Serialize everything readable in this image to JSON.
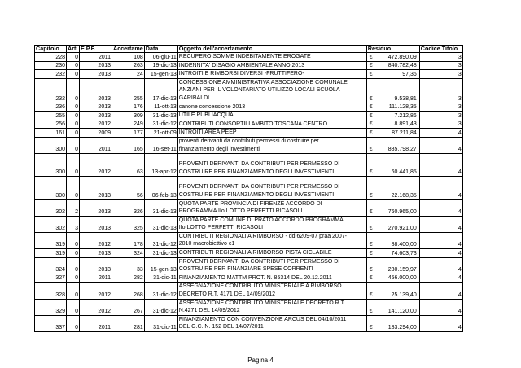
{
  "headers": [
    "Capitolo",
    "Arti",
    "E.P.F.",
    "Accertame",
    "Data",
    "Oggetto dell'accertamento",
    "Residuo",
    "Codice Titolo"
  ],
  "currency_symbol": "€",
  "rows": [
    {
      "capitolo": "228",
      "articolo": "0",
      "epf": "2011",
      "accertamento": "108",
      "data": "06-giu-11",
      "oggetto": "RECUPERO SOMME INDEBITAMENTE EROGATE",
      "residuo": "472.890,09",
      "codice": "3",
      "lines": 1
    },
    {
      "capitolo": "230",
      "articolo": "0",
      "epf": "2013",
      "accertamento": "263",
      "data": "19-dic-13",
      "oggetto": "INDENNITA' DISAGIO AMBIENTALE ANNO 2013",
      "residuo": "840.782,48",
      "codice": "3",
      "lines": 1
    },
    {
      "capitolo": "232",
      "articolo": "0",
      "epf": "2013",
      "accertamento": "24",
      "data": "15-gen-13",
      "oggetto": "INTROITI E RIMBORSI DIVERSI -FRUTTIFERO-",
      "residuo": "97,36",
      "codice": "3",
      "lines": 1
    },
    {
      "capitolo": "232",
      "articolo": "0",
      "epf": "2013",
      "accertamento": "255",
      "data": "17-dic-13",
      "oggetto": "CONCESSIONE AMMINISTRATIVA ASSOCIAZIONE COMUNALE\nANZIANI PER IL VOLONTARIATO UTILIZZO LOCALI SCUOLA\nGARIBALDI",
      "residuo": "9.538,81",
      "codice": "3",
      "lines": 3
    },
    {
      "capitolo": "236",
      "articolo": "0",
      "epf": "2013",
      "accertamento": "176",
      "data": "11-ott-13",
      "oggetto": "canone concessione 2013",
      "residuo": "111.128,35",
      "codice": "3",
      "lines": 1
    },
    {
      "capitolo": "255",
      "articolo": "0",
      "epf": "2013",
      "accertamento": "309",
      "data": "31-dic-13",
      "oggetto": "UTILE PUBLIACQUA",
      "residuo": "7.212,86",
      "codice": "3",
      "lines": 1
    },
    {
      "capitolo": "256",
      "articolo": "0",
      "epf": "2012",
      "accertamento": "249",
      "data": "31-dic-12",
      "oggetto": "CONTRIBUTI CONSORTILI AMBITO TOSCANA CENTRO",
      "residuo": "8.891,43",
      "codice": "3",
      "lines": 1
    },
    {
      "capitolo": "161",
      "articolo": "0",
      "epf": "2009",
      "accertamento": "177",
      "data": "21-ott-09",
      "oggetto": "INTROITI AREA PEEP",
      "residuo": "87.211,84",
      "codice": "4",
      "lines": 1
    },
    {
      "capitolo": "300",
      "articolo": "0",
      "epf": "2011",
      "accertamento": "165",
      "data": "16-set-11",
      "oggetto": "proventi derivanti da contributi permessi di costruire per\nfinanziamento degli investimenti",
      "residuo": "885.798,27",
      "codice": "4",
      "lines": 2
    },
    {
      "capitolo": "300",
      "articolo": "0",
      "epf": "2012",
      "accertamento": "63",
      "data": "13-apr-12",
      "oggetto": "PROVENTI DERIVANTI DA CONTRIBUTI PER PERMESSO DI\nCOSTRUIRE PER FINANZIAMENTO DEGLI INVESTIMENTI",
      "residuo": "60.441,85",
      "codice": "4",
      "lines": 3
    },
    {
      "capitolo": "300",
      "articolo": "0",
      "epf": "2013",
      "accertamento": "56",
      "data": "06-feb-13",
      "oggetto": "PROVENTI DERIVANTI DA CONTRIBUTI PER PERMESSO DI\nCOSTRUIRE PER FINANZIAMENTO DEGLI INVESTIMENTI",
      "residuo": "22.168,35",
      "codice": "4",
      "lines": 3
    },
    {
      "capitolo": "302",
      "articolo": "2",
      "epf": "2013",
      "accertamento": "326",
      "data": "31-dic-13",
      "oggetto": "QUOTA PARTE PROVINCIA DI FIRENZE ACCORDO DI\nPROGRAMMA IIo LOTTO PERFETTI RICASOLI",
      "residuo": "760.965,00",
      "codice": "4",
      "lines": 2
    },
    {
      "capitolo": "302",
      "articolo": "3",
      "epf": "2013",
      "accertamento": "325",
      "data": "31-dic-13",
      "oggetto": "QUOTA PARTE COMUNE DI PRATO ACCORDO PROGRAMMA\nIIo LOTTO PERFETTI RICASOLI",
      "residuo": "270.921,00",
      "codice": "4",
      "lines": 2
    },
    {
      "capitolo": "319",
      "articolo": "0",
      "epf": "2012",
      "accertamento": "178",
      "data": "31-dic-12",
      "oggetto": "CONTRIBUTI REGIONALI A RIMBORSO - dd 6209-07 praa 2007-\n2010 macrobiettivo c1",
      "residuo": "88.400,00",
      "codice": "4",
      "lines": 2
    },
    {
      "capitolo": "319",
      "articolo": "0",
      "epf": "2013",
      "accertamento": "324",
      "data": "31-dic-13",
      "oggetto": "CONTRIBUTI REGIONALI A RIMBORSO PISTA CICLABILE",
      "residuo": "74.603,73",
      "codice": "4",
      "lines": 1
    },
    {
      "capitolo": "324",
      "articolo": "0",
      "epf": "2013",
      "accertamento": "33",
      "data": "15-gen-13",
      "oggetto": "PROVENTI DERIVANTI DA CONTRIBUTI PER PERMESSO DI\nCOSTRUIRE PER FINANZIARE SPESE CORRENTI",
      "residuo": "230.159,97",
      "codice": "4",
      "lines": 2
    },
    {
      "capitolo": "327",
      "articolo": "0",
      "epf": "2011",
      "accertamento": "282",
      "data": "31-dic-11",
      "oggetto": "FINANZIAMENTO MATTM PROT. N. 85314 DEL 20.12.2011",
      "residuo": "456.000,00",
      "codice": "4",
      "lines": 1
    },
    {
      "capitolo": "328",
      "articolo": "0",
      "epf": "2012",
      "accertamento": "268",
      "data": "31-dic-12",
      "oggetto": "ASSEGNAZIONE CONTRIBUTO MINISTERIALE A RIMBORSO\nDECRETO R.T. 4171 DEL 14/09/2012",
      "residuo": "25.139,40",
      "codice": "4",
      "lines": 2
    },
    {
      "capitolo": "329",
      "articolo": "0",
      "epf": "2012",
      "accertamento": "267",
      "data": "31-dic-12",
      "oggetto": "ASSEGNAZIONE CONTRIBUTO MINISTERIALE DECRETO R.T.\nN.4271 DEL 14/09/2012",
      "residuo": "141.120,00",
      "codice": "4",
      "lines": 2
    },
    {
      "capitolo": "337",
      "articolo": "0",
      "epf": "2011",
      "accertamento": "281",
      "data": "31-dic-11",
      "oggetto": "FINANZIAMENTO CON CONVENZIONE ARCUS DEL 04/10/2011\nDEL G.C. N. 152 DEL 14/07/2011",
      "residuo": "183.294,00",
      "codice": "4",
      "lines": 2
    }
  ],
  "footer": "Pagina 4"
}
